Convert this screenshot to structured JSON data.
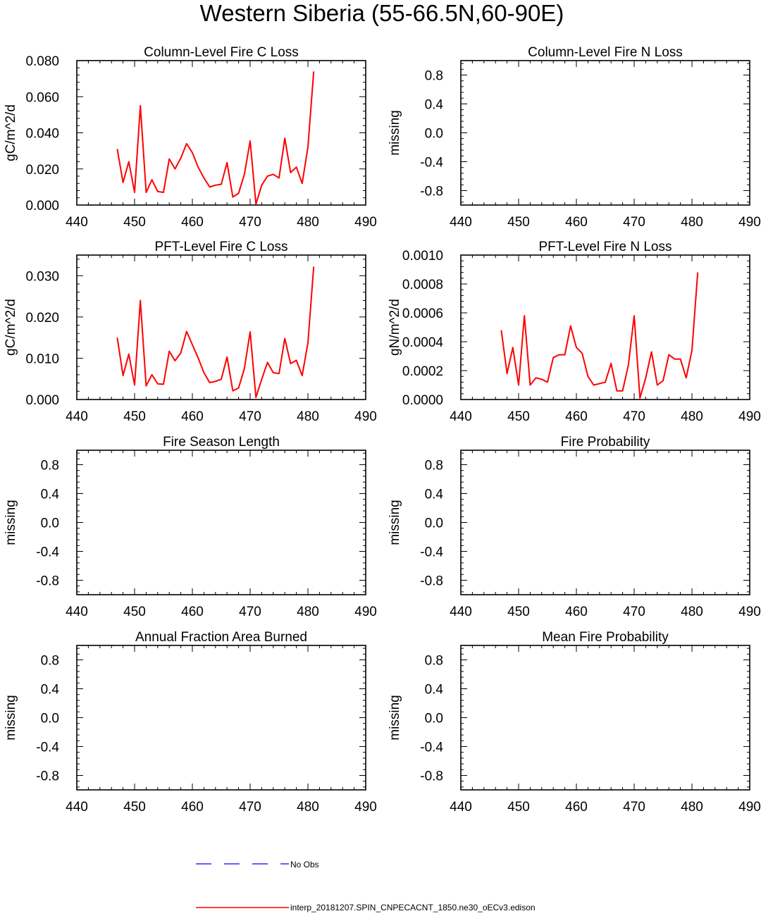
{
  "page": {
    "title": "Western Siberia (55-66.5N,60-90E)"
  },
  "legend": {
    "items": [
      {
        "label": "No Obs",
        "color": "#2b2bff",
        "style": "dashed"
      },
      {
        "label": "interp_20181207.SPIN_CNPECACNT_1850.ne30_oECv3.edison",
        "color": "#ff0000",
        "style": "solid"
      }
    ]
  },
  "chart_data": [
    {
      "type": "line",
      "title": "Column-Level Fire C Loss",
      "ylabel": "gC/m^2/d",
      "xlim": [
        440,
        490
      ],
      "ylim": [
        0,
        0.08
      ],
      "xticks": [
        440,
        450,
        460,
        470,
        480,
        490
      ],
      "xtick_labels": [
        "440",
        "450",
        "460",
        "470",
        "480",
        "490"
      ],
      "yticks": [
        0,
        0.02,
        0.04,
        0.06,
        0.08
      ],
      "ytick_labels": [
        "0.000",
        "0.020",
        "0.040",
        "0.060",
        "0.080"
      ],
      "series": [
        {
          "name": "interp_20181207.SPIN_CNPECACNT_1850.ne30_oECv3.edison",
          "color": "#ff0000",
          "x": [
            447,
            448,
            449,
            450,
            451,
            452,
            453,
            454,
            455,
            456,
            457,
            458,
            459,
            460,
            461,
            462,
            463,
            464,
            465,
            466,
            467,
            468,
            469,
            470,
            471,
            472,
            473,
            474,
            475,
            476,
            477,
            478,
            479,
            480,
            481
          ],
          "y": [
            0.031,
            0.0125,
            0.024,
            0.007,
            0.055,
            0.007,
            0.014,
            0.0075,
            0.007,
            0.0255,
            0.02,
            0.026,
            0.034,
            0.029,
            0.021,
            0.015,
            0.01,
            0.011,
            0.0115,
            0.0235,
            0.0045,
            0.0065,
            0.017,
            0.0355,
            0.0005,
            0.011,
            0.016,
            0.017,
            0.015,
            0.037,
            0.018,
            0.021,
            0.012,
            0.032,
            0.074
          ]
        }
      ]
    },
    {
      "type": "line",
      "title": "Column-Level Fire N Loss",
      "ylabel": "missing",
      "xlim": [
        440,
        490
      ],
      "ylim": [
        -1,
        1
      ],
      "xticks": [
        440,
        450,
        460,
        470,
        480,
        490
      ],
      "xtick_labels": [
        "440",
        "450",
        "460",
        "470",
        "480",
        "490"
      ],
      "yticks": [
        -0.8,
        -0.4,
        0,
        0.4,
        0.8
      ],
      "ytick_labels": [
        "-0.8",
        "-0.4",
        "0.0",
        "0.4",
        "0.8"
      ],
      "series": []
    },
    {
      "type": "line",
      "title": "PFT-Level Fire C Loss",
      "ylabel": "gC/m^2/d",
      "xlim": [
        440,
        490
      ],
      "ylim": [
        0,
        0.035
      ],
      "xticks": [
        440,
        450,
        460,
        470,
        480,
        490
      ],
      "xtick_labels": [
        "440",
        "450",
        "460",
        "470",
        "480",
        "490"
      ],
      "yticks": [
        0,
        0.01,
        0.02,
        0.03
      ],
      "ytick_labels": [
        "0.000",
        "0.010",
        "0.020",
        "0.030"
      ],
      "series": [
        {
          "name": "interp_20181207.SPIN_CNPECACNT_1850.ne30_oECv3.edison",
          "color": "#ff0000",
          "x": [
            447,
            448,
            449,
            450,
            451,
            452,
            453,
            454,
            455,
            456,
            457,
            458,
            459,
            460,
            461,
            462,
            463,
            464,
            465,
            466,
            467,
            468,
            469,
            470,
            471,
            472,
            473,
            474,
            475,
            476,
            477,
            478,
            479,
            480,
            481
          ],
          "y": [
            0.015,
            0.0058,
            0.011,
            0.0035,
            0.024,
            0.0033,
            0.006,
            0.0038,
            0.0037,
            0.0117,
            0.0094,
            0.0113,
            0.0165,
            0.0133,
            0.0101,
            0.0065,
            0.0041,
            0.0044,
            0.0049,
            0.0103,
            0.0021,
            0.0028,
            0.0075,
            0.0164,
            0.0005,
            0.0049,
            0.009,
            0.0065,
            0.0063,
            0.0148,
            0.0087,
            0.0095,
            0.0058,
            0.0137,
            0.0322
          ]
        }
      ]
    },
    {
      "type": "line",
      "title": "PFT-Level Fire N Loss",
      "ylabel": "gN/m^2/d",
      "xlim": [
        440,
        490
      ],
      "ylim": [
        0,
        0.001
      ],
      "xticks": [
        440,
        450,
        460,
        470,
        480,
        490
      ],
      "xtick_labels": [
        "440",
        "450",
        "460",
        "470",
        "480",
        "490"
      ],
      "yticks": [
        0,
        0.0002,
        0.0004,
        0.0006,
        0.0008,
        0.001
      ],
      "ytick_labels": [
        "0.0000",
        "0.0002",
        "0.0004",
        "0.0006",
        "0.0008",
        "0.0010"
      ],
      "series": [
        {
          "name": "interp_20181207.SPIN_CNPECACNT_1850.ne30_oECv3.edison",
          "color": "#ff0000",
          "x": [
            447,
            448,
            449,
            450,
            451,
            452,
            453,
            454,
            455,
            456,
            457,
            458,
            459,
            460,
            461,
            462,
            463,
            464,
            465,
            466,
            467,
            468,
            469,
            470,
            471,
            472,
            473,
            474,
            475,
            476,
            477,
            478,
            479,
            480,
            481
          ],
          "y": [
            0.00048,
            0.00018,
            0.00036,
            0.0001,
            0.00058,
            0.0001,
            0.00015,
            0.00014,
            0.00012,
            0.00029,
            0.00031,
            0.00031,
            0.00051,
            0.00036,
            0.00032,
            0.00016,
            0.0001,
            0.00011,
            0.00012,
            0.00025,
            6e-05,
            6e-05,
            0.00024,
            0.00058,
            1e-05,
            0.00015,
            0.00033,
            0.0001,
            0.00013,
            0.00031,
            0.00028,
            0.00028,
            0.00015,
            0.00034,
            0.00088
          ]
        }
      ]
    },
    {
      "type": "line",
      "title": "Fire Season Length",
      "ylabel": "missing",
      "xlim": [
        440,
        490
      ],
      "ylim": [
        -1,
        1
      ],
      "xticks": [
        440,
        450,
        460,
        470,
        480,
        490
      ],
      "xtick_labels": [
        "440",
        "450",
        "460",
        "470",
        "480",
        "490"
      ],
      "yticks": [
        -0.8,
        -0.4,
        0,
        0.4,
        0.8
      ],
      "ytick_labels": [
        "-0.8",
        "-0.4",
        "0.0",
        "0.4",
        "0.8"
      ],
      "series": []
    },
    {
      "type": "line",
      "title": "Fire Probability",
      "ylabel": "missing",
      "xlim": [
        440,
        490
      ],
      "ylim": [
        -1,
        1
      ],
      "xticks": [
        440,
        450,
        460,
        470,
        480,
        490
      ],
      "xtick_labels": [
        "440",
        "450",
        "460",
        "470",
        "480",
        "490"
      ],
      "yticks": [
        -0.8,
        -0.4,
        0,
        0.4,
        0.8
      ],
      "ytick_labels": [
        "-0.8",
        "-0.4",
        "0.0",
        "0.4",
        "0.8"
      ],
      "series": []
    },
    {
      "type": "line",
      "title": "Annual Fraction Area Burned",
      "ylabel": "missing",
      "xlim": [
        440,
        490
      ],
      "ylim": [
        -1,
        1
      ],
      "xticks": [
        440,
        450,
        460,
        470,
        480,
        490
      ],
      "xtick_labels": [
        "440",
        "450",
        "460",
        "470",
        "480",
        "490"
      ],
      "yticks": [
        -0.8,
        -0.4,
        0,
        0.4,
        0.8
      ],
      "ytick_labels": [
        "-0.8",
        "-0.4",
        "0.0",
        "0.4",
        "0.8"
      ],
      "series": []
    },
    {
      "type": "line",
      "title": "Mean Fire Probability",
      "ylabel": "missing",
      "xlim": [
        440,
        490
      ],
      "ylim": [
        -1,
        1
      ],
      "xticks": [
        440,
        450,
        460,
        470,
        480,
        490
      ],
      "xtick_labels": [
        "440",
        "450",
        "460",
        "470",
        "480",
        "490"
      ],
      "yticks": [
        -0.8,
        -0.4,
        0,
        0.4,
        0.8
      ],
      "ytick_labels": [
        "-0.8",
        "-0.4",
        "0.0",
        "0.4",
        "0.8"
      ],
      "series": []
    }
  ]
}
